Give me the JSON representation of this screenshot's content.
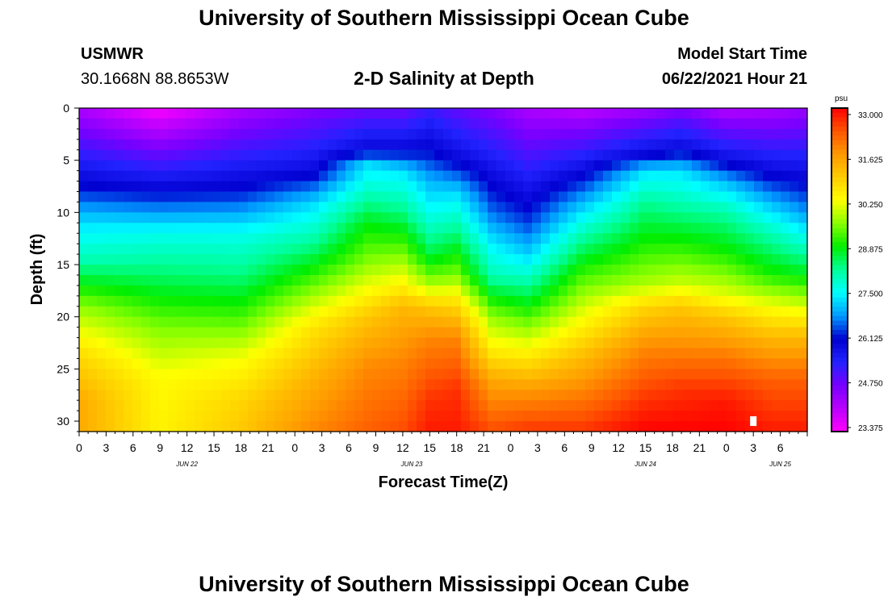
{
  "header": {
    "title": "University of Southern Mississippi Ocean Cube",
    "station_id": "USMWR",
    "coordinates": "30.1668N  88.8653W",
    "subtitle": "2-D Salinity at Depth",
    "model_label": "Model Start Time",
    "model_time": "06/22/2021 Hour 21"
  },
  "footer": {
    "title": "University of Southern Mississippi Ocean Cube"
  },
  "colors": {
    "palette": [
      "#ff00ff",
      "#bb00ff",
      "#7700ff",
      "#2222ff",
      "#0000d0",
      "#0099ff",
      "#00ffff",
      "#00ff99",
      "#00ee00",
      "#88ff00",
      "#ffff00",
      "#ffcc00",
      "#ff9900",
      "#ff5500",
      "#ff0000"
    ]
  },
  "chart_data": {
    "type": "heatmap",
    "title": "2-D Salinity at Depth",
    "xlabel": "Forecast Time(Z)",
    "ylabel": "Depth (ft)",
    "x_range_hours": [
      0,
      81
    ],
    "ylim": [
      0,
      31
    ],
    "y_ticks": [
      0,
      5,
      10,
      15,
      20,
      25,
      30
    ],
    "x_tick_labels": [
      "0",
      "3",
      "6",
      "9",
      "12",
      "15",
      "18",
      "21",
      "0",
      "3",
      "6",
      "9",
      "12",
      "15",
      "18",
      "21",
      "0",
      "3",
      "6",
      "9",
      "12",
      "15",
      "18",
      "21",
      "0",
      "3",
      "6"
    ],
    "date_labels": [
      {
        "label": "JUN 22",
        "hour": 12
      },
      {
        "label": "JUN 23",
        "hour": 37
      },
      {
        "label": "JUN 24",
        "hour": 63
      },
      {
        "label": "JUN 25",
        "hour": 78
      }
    ],
    "colorbar": {
      "unit": "psu",
      "min": 23.375,
      "max": 33.0,
      "tick_labels": [
        "33.000",
        "31.625",
        "30.250",
        "28.875",
        "27.500",
        "26.125",
        "24.750",
        "23.375"
      ]
    },
    "profile_hours": [
      0,
      9,
      18,
      26,
      32,
      36,
      39,
      42,
      46,
      50,
      56,
      63,
      67,
      72,
      77,
      81
    ],
    "profiles": [
      [
        [
          0,
          24.2
        ],
        [
          7,
          26.0
        ],
        [
          11,
          27.3
        ],
        [
          14.5,
          28.0
        ],
        [
          19,
          29.6
        ],
        [
          24,
          30.8
        ],
        [
          28,
          31.4
        ],
        [
          31,
          31.4
        ]
      ],
      [
        [
          0,
          23.4
        ],
        [
          8,
          26.1
        ],
        [
          12,
          27.6
        ],
        [
          16,
          28.4
        ],
        [
          21,
          29.5
        ],
        [
          26,
          30.3
        ],
        [
          31,
          30.4
        ]
      ],
      [
        [
          0,
          24.2
        ],
        [
          8,
          26.2
        ],
        [
          12,
          27.6
        ],
        [
          16,
          28.3
        ],
        [
          20,
          29.2
        ],
        [
          24,
          30.2
        ],
        [
          28,
          30.8
        ],
        [
          31,
          31.0
        ]
      ],
      [
        [
          0,
          24.6
        ],
        [
          6,
          25.9
        ],
        [
          9,
          27.2
        ],
        [
          13,
          28.2
        ],
        [
          17,
          29.4
        ],
        [
          21,
          30.6
        ],
        [
          26,
          31.3
        ],
        [
          31,
          31.8
        ]
      ],
      [
        [
          0,
          24.8
        ],
        [
          4,
          26.0
        ],
        [
          5.5,
          27.3
        ],
        [
          8,
          27.9
        ],
        [
          11,
          28.8
        ],
        [
          15,
          29.6
        ],
        [
          18,
          30.4
        ],
        [
          20,
          31.0
        ],
        [
          25,
          31.8
        ],
        [
          31,
          32.2
        ]
      ],
      [
        [
          0,
          24.8
        ],
        [
          4,
          26.0
        ],
        [
          6,
          27.3
        ],
        [
          10,
          28.3
        ],
        [
          13,
          29.2
        ],
        [
          17,
          30.4
        ],
        [
          19,
          31.2
        ],
        [
          24,
          31.8
        ],
        [
          31,
          32.4
        ]
      ],
      [
        [
          0,
          25.2
        ],
        [
          4,
          26.1
        ],
        [
          7,
          27.0
        ],
        [
          10,
          27.6
        ],
        [
          14,
          28.6
        ],
        [
          17,
          29.8
        ],
        [
          19,
          31.0
        ],
        [
          22,
          31.8
        ],
        [
          28,
          32.6
        ],
        [
          31,
          32.8
        ]
      ],
      [
        [
          0,
          24.9
        ],
        [
          5,
          26.0
        ],
        [
          8,
          27.2
        ],
        [
          12,
          28.3
        ],
        [
          16,
          29.5
        ],
        [
          19,
          30.8
        ],
        [
          22,
          31.8
        ],
        [
          27,
          32.6
        ],
        [
          31,
          32.8
        ]
      ],
      [
        [
          0,
          24.6
        ],
        [
          6,
          25.8
        ],
        [
          10,
          26.6
        ],
        [
          13,
          27.4
        ],
        [
          16,
          28.0
        ],
        [
          20,
          29.6
        ],
        [
          23,
          30.4
        ],
        [
          26,
          31.4
        ],
        [
          31,
          32.4
        ]
      ],
      [
        [
          0,
          24.2
        ],
        [
          7,
          25.6
        ],
        [
          11,
          26.4
        ],
        [
          14,
          27.2
        ],
        [
          17,
          28.2
        ],
        [
          21,
          29.6
        ],
        [
          24,
          30.6
        ],
        [
          27,
          31.6
        ],
        [
          31,
          32.6
        ]
      ],
      [
        [
          0,
          24.0
        ],
        [
          6,
          25.9
        ],
        [
          9,
          27.0
        ],
        [
          12,
          28.0
        ],
        [
          16,
          29.2
        ],
        [
          20,
          30.2
        ],
        [
          24,
          31.2
        ],
        [
          28,
          32.0
        ],
        [
          31,
          32.6
        ]
      ],
      [
        [
          0,
          24.3
        ],
        [
          4.5,
          26.0
        ],
        [
          6,
          27.3
        ],
        [
          9,
          28.2
        ],
        [
          13,
          29.0
        ],
        [
          17,
          29.8
        ],
        [
          19,
          30.8
        ],
        [
          23,
          31.8
        ],
        [
          28,
          32.6
        ],
        [
          31,
          33.0
        ]
      ],
      [
        [
          0,
          24.6
        ],
        [
          4,
          26.0
        ],
        [
          6,
          27.3
        ],
        [
          9,
          28.0
        ],
        [
          13,
          29.0
        ],
        [
          17,
          30.0
        ],
        [
          19,
          31.0
        ],
        [
          23,
          31.8
        ],
        [
          27,
          32.6
        ],
        [
          31,
          33.0
        ]
      ],
      [
        [
          0,
          24.1
        ],
        [
          5,
          25.9
        ],
        [
          7,
          27.0
        ],
        [
          10,
          28.1
        ],
        [
          14,
          29.0
        ],
        [
          18,
          30.1
        ],
        [
          20,
          31.0
        ],
        [
          24,
          32.0
        ],
        [
          28,
          32.8
        ],
        [
          31,
          33.0
        ]
      ],
      [
        [
          0,
          24.2
        ],
        [
          6,
          25.9
        ],
        [
          9,
          27.0
        ],
        [
          12,
          28.0
        ],
        [
          16,
          29.0
        ],
        [
          19,
          30.2
        ],
        [
          22,
          31.2
        ],
        [
          26,
          32.2
        ],
        [
          31,
          32.8
        ]
      ],
      [
        [
          0,
          24.4
        ],
        [
          6,
          25.8
        ],
        [
          10,
          26.8
        ],
        [
          13,
          27.8
        ],
        [
          16,
          28.8
        ],
        [
          19,
          30.0
        ],
        [
          22,
          31.2
        ],
        [
          26,
          32.2
        ],
        [
          31,
          32.8
        ]
      ]
    ],
    "missing_marker": {
      "hour": 75,
      "depth": 30
    }
  }
}
